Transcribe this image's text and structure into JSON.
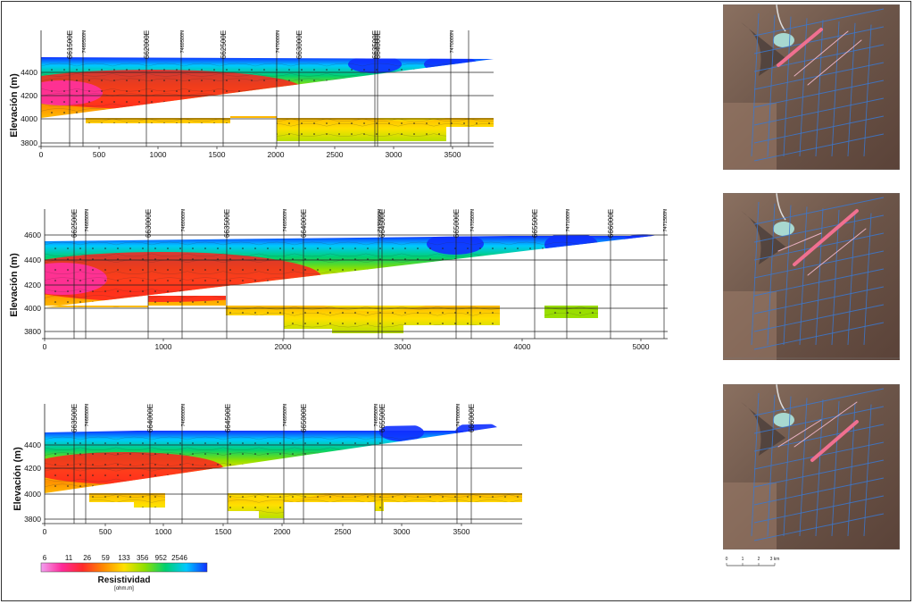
{
  "sections": [
    {
      "ylabel": "Elevación (m)",
      "yticks": [
        "4400",
        "4200",
        "4000",
        "3800"
      ],
      "xticks": [
        "0",
        "500",
        "1000",
        "1500",
        "2000",
        "2500",
        "3000",
        "3500"
      ],
      "coords": [
        "661500E",
        "7469500N",
        "662000E",
        "7469500N",
        "662500E",
        "7470000N",
        "663000E",
        "663500E",
        "664000E",
        "7470000N"
      ]
    },
    {
      "ylabel": "Elevación (m)",
      "yticks": [
        "4600",
        "4400",
        "4200",
        "4000",
        "3800"
      ],
      "xticks": [
        "0",
        "1000",
        "2000",
        "3000",
        "4000",
        "5000"
      ],
      "coords": [
        "662500E",
        "7468500N",
        "663000E",
        "7469000N",
        "663500E",
        "7469500N",
        "664000E",
        "7470000N",
        "664500E",
        "665000E",
        "7470500N",
        "665500E",
        "7471000N",
        "666000E",
        "7471500N"
      ]
    },
    {
      "ylabel": "Elevación (m)",
      "yticks": [
        "4400",
        "4200",
        "4000",
        "3800"
      ],
      "xticks": [
        "0",
        "500",
        "1000",
        "1500",
        "2000",
        "2500",
        "3000",
        "3500"
      ],
      "coords": [
        "663500E",
        "7468500N",
        "664000E",
        "7469000N",
        "664500E",
        "7469500N",
        "665000E",
        "7469500N",
        "665500E",
        "7470000N",
        "666000E"
      ]
    }
  ],
  "legend": {
    "values": [
      "6",
      "11",
      "26",
      "59",
      "133",
      "356",
      "952",
      "2546"
    ],
    "title": "Resistividad",
    "unit": "[ohm.m]",
    "colors": [
      "#f2a0f0",
      "#ff2a9a",
      "#ff2a2a",
      "#ff8a00",
      "#ffe000",
      "#8ee000",
      "#00d070",
      "#00c8ff",
      "#1030ff"
    ]
  },
  "scalebar": {
    "ticks": [
      "0",
      "1",
      "2",
      "3 km"
    ]
  },
  "icons": [
    "satellite-map-icon"
  ]
}
